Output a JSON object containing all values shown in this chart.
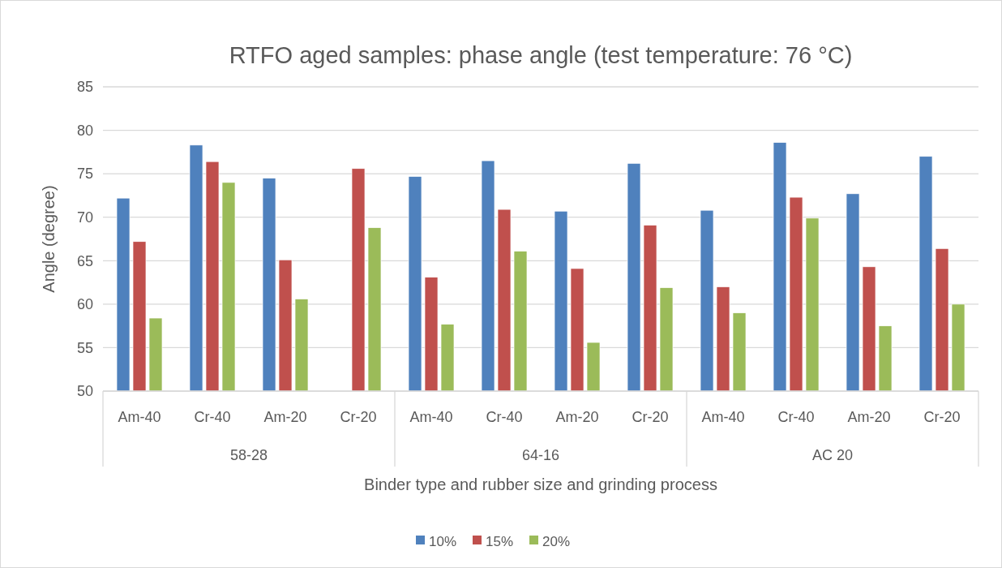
{
  "chart_data": {
    "type": "bar",
    "title": "RTFO aged samples: phase angle (test temperature: 76 °C)",
    "xlabel": "Binder type and rubber size and grinding process",
    "ylabel": "Angle (degree)",
    "categories": [
      "Am-40",
      "Cr-40",
      "Am-20",
      "Cr-20",
      "Am-40",
      "Cr-40",
      "Am-20",
      "Cr-20",
      "Am-40",
      "Cr-40",
      "Am-20",
      "Cr-20"
    ],
    "annotations": [
      "58-28",
      "64-16",
      "AC 20"
    ],
    "series": [
      {
        "name": "10%",
        "color": "#4f81bd",
        "values": [
          72.2,
          78.3,
          74.5,
          null,
          74.7,
          76.5,
          70.7,
          76.2,
          70.8,
          78.6,
          72.7,
          77.0
        ]
      },
      {
        "name": "15%",
        "color": "#c0504d",
        "values": [
          67.2,
          76.4,
          65.1,
          75.6,
          63.1,
          70.9,
          64.1,
          69.1,
          62.0,
          72.3,
          64.3,
          66.4
        ]
      },
      {
        "name": "20%",
        "color": "#9bbb59",
        "values": [
          58.4,
          74.0,
          60.6,
          68.8,
          57.7,
          66.1,
          55.6,
          61.9,
          59.0,
          69.9,
          57.5,
          60.0
        ]
      }
    ],
    "ylim": [
      50,
      85
    ],
    "yticks": [
      50,
      55,
      60,
      65,
      70,
      75,
      80,
      85
    ],
    "grid": "y",
    "legend": "bottom"
  }
}
